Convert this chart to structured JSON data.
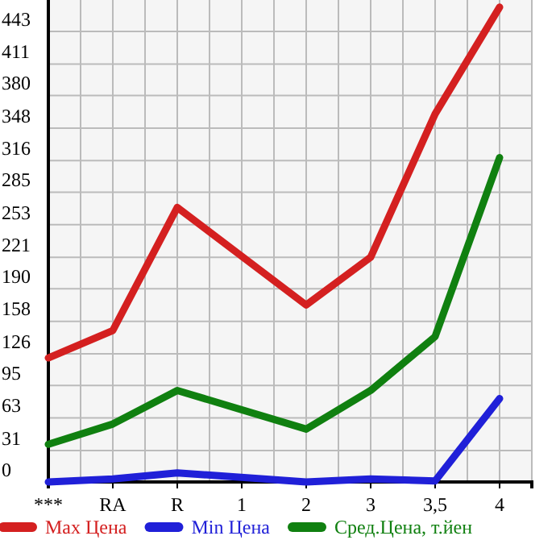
{
  "chart_data": {
    "type": "line",
    "categories": [
      "***",
      "RA",
      "R",
      "1",
      "2",
      "3",
      "3,5",
      "4"
    ],
    "series": [
      {
        "name": "Max Цена",
        "color": "#d42020",
        "values": [
          122,
          149,
          270,
          null,
          174,
          221,
          362,
          467
        ]
      },
      {
        "name": "Min Цена",
        "color": "#2020d8",
        "values": [
          0,
          3,
          9,
          null,
          0,
          3,
          1,
          82
        ]
      },
      {
        "name": "Сред.Цена, т.йен",
        "color": "#108010",
        "values": [
          37,
          57,
          90,
          null,
          52,
          90,
          143,
          319
        ]
      }
    ],
    "ylim": [
      0,
      474
    ],
    "yticks": [
      0,
      31,
      63,
      95,
      126,
      158,
      190,
      221,
      253,
      285,
      316,
      348,
      380,
      411,
      443
    ],
    "grid": true,
    "legend": "bottom",
    "marker": "none",
    "line_style": "solid"
  }
}
